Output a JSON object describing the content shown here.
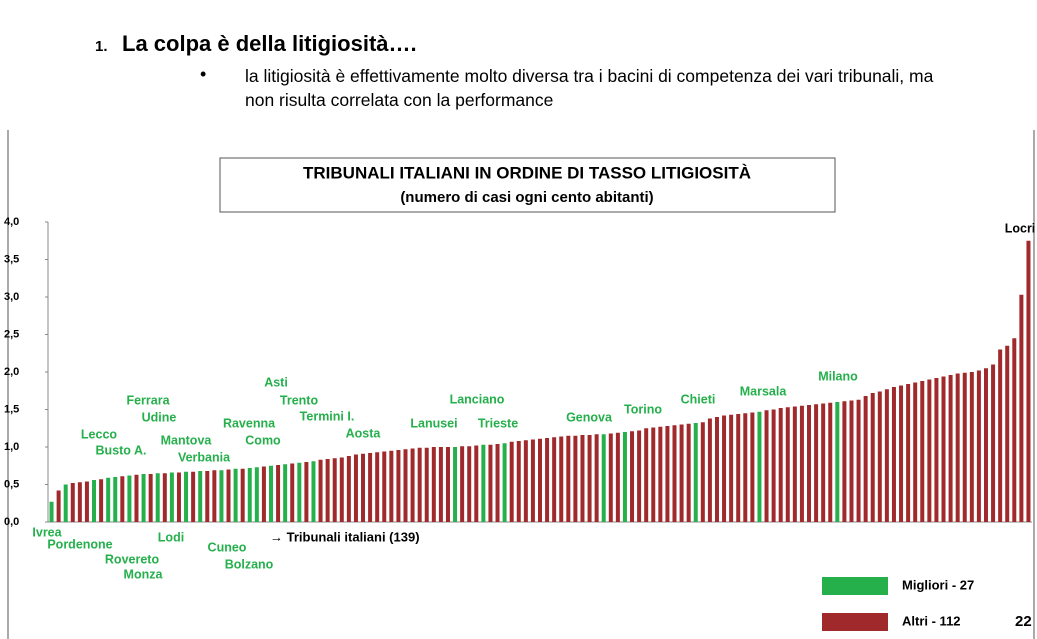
{
  "header": {
    "number": "1.",
    "title": "La colpa è della litigiosità….",
    "bullet": "la litigiosità è effettivamente molto diversa tra i bacini di competenza dei vari tribunali, ma non risulta correlata con la performance"
  },
  "page_number": "22",
  "chart_data": {
    "type": "bar",
    "title": "TRIBUNALI ITALIANI IN ORDINE DI TASSO LITIGIOSITÀ",
    "subtitle": "(numero di casi ogni cento abitanti)",
    "x_label": "→ Tribunali italiani (139)",
    "ylim": [
      0,
      4
    ],
    "yticks": [
      {
        "value": 0,
        "label": "0,0"
      },
      {
        "value": 0.5,
        "label": "0,5"
      },
      {
        "value": 1,
        "label": "1,0"
      },
      {
        "value": 1.5,
        "label": "1,5"
      },
      {
        "value": 2,
        "label": "2,0"
      },
      {
        "value": 2.5,
        "label": "2,5"
      },
      {
        "value": 3,
        "label": "3,0"
      },
      {
        "value": 3.5,
        "label": "3,5"
      },
      {
        "value": 4,
        "label": "4,0"
      }
    ],
    "legend": "bottom-right",
    "categories": [
      "Ivrea",
      null,
      "Pordenone",
      null,
      null,
      null,
      "Lecco",
      null,
      "Busto A.",
      "Rovereto",
      null,
      "Monza",
      null,
      "Ferrara",
      null,
      "Udine",
      null,
      "Lodi",
      null,
      "Mantova",
      null,
      "Verbania",
      null,
      null,
      "Cuneo",
      null,
      "Bolzano",
      null,
      "Ravenna",
      "Como",
      null,
      "Asti",
      null,
      "Trento",
      null,
      "Termini I.",
      null,
      "Aosta",
      null,
      null,
      null,
      null,
      null,
      null,
      null,
      null,
      null,
      null,
      null,
      null,
      null,
      null,
      null,
      null,
      null,
      null,
      null,
      "Lanusei",
      null,
      null,
      null,
      "Lanciano",
      null,
      null,
      "Trieste",
      null,
      null,
      null,
      null,
      null,
      null,
      null,
      null,
      null,
      null,
      null,
      null,
      null,
      "Genova",
      null,
      null,
      "Torino",
      null,
      null,
      null,
      null,
      null,
      null,
      null,
      null,
      null,
      "Chieti",
      null,
      null,
      null,
      null,
      null,
      null,
      null,
      null,
      "Marsala",
      null,
      null,
      null,
      null,
      null,
      null,
      null,
      null,
      null,
      null,
      "Milano",
      null,
      null,
      null,
      null,
      null,
      null,
      null,
      null,
      null,
      null,
      null,
      null,
      null,
      null,
      null,
      null,
      null,
      null,
      null,
      null,
      null,
      null,
      null,
      null,
      null,
      null,
      "Locri"
    ],
    "series": [
      {
        "name": "Migliori - 27",
        "color": "#25b04c",
        "values": [
          0.27,
          null,
          0.5,
          null,
          null,
          null,
          0.56,
          null,
          0.59,
          0.6,
          null,
          0.62,
          null,
          0.64,
          null,
          0.65,
          null,
          0.66,
          null,
          0.67,
          null,
          0.68,
          null,
          null,
          0.69,
          null,
          0.71,
          null,
          0.72,
          0.73,
          null,
          0.75,
          null,
          0.77,
          null,
          0.79,
          null,
          0.81,
          null,
          null,
          null,
          null,
          null,
          null,
          null,
          null,
          null,
          null,
          null,
          null,
          null,
          null,
          null,
          null,
          null,
          null,
          null,
          1.0,
          null,
          null,
          null,
          1.03,
          null,
          null,
          1.05,
          null,
          null,
          null,
          null,
          null,
          null,
          null,
          null,
          null,
          null,
          null,
          null,
          null,
          1.17,
          null,
          null,
          1.2,
          null,
          null,
          null,
          null,
          null,
          null,
          null,
          null,
          null,
          1.32,
          null,
          null,
          null,
          null,
          null,
          null,
          null,
          null,
          1.47,
          null,
          null,
          null,
          null,
          null,
          null,
          null,
          null,
          null,
          null,
          1.6,
          null,
          null,
          null,
          null,
          null,
          null,
          null,
          null,
          null,
          null,
          null,
          null,
          null,
          null,
          null,
          null,
          null,
          null,
          null,
          null,
          null,
          null,
          null,
          null,
          null,
          null,
          null
        ]
      },
      {
        "name": "Altri - 112",
        "color": "#a0292b",
        "values": [
          null,
          0.42,
          null,
          0.52,
          0.53,
          0.54,
          null,
          0.57,
          null,
          null,
          0.61,
          null,
          0.63,
          null,
          0.64,
          null,
          0.65,
          null,
          0.66,
          null,
          0.67,
          null,
          0.68,
          0.69,
          null,
          0.7,
          null,
          0.71,
          null,
          null,
          0.74,
          null,
          0.76,
          null,
          0.78,
          null,
          0.8,
          null,
          0.83,
          0.84,
          0.85,
          0.86,
          0.88,
          0.9,
          0.91,
          0.92,
          0.93,
          0.94,
          0.95,
          0.96,
          0.97,
          0.98,
          0.99,
          0.99,
          1.0,
          1.0,
          1.0,
          null,
          1.01,
          1.01,
          1.02,
          null,
          1.03,
          1.04,
          null,
          1.07,
          1.08,
          1.09,
          1.1,
          1.11,
          1.12,
          1.13,
          1.14,
          1.15,
          1.15,
          1.16,
          1.16,
          1.17,
          null,
          1.18,
          1.19,
          null,
          1.21,
          1.22,
          1.25,
          1.26,
          1.27,
          1.28,
          1.29,
          1.3,
          1.31,
          null,
          1.33,
          1.38,
          1.4,
          1.42,
          1.43,
          1.44,
          1.45,
          1.46,
          null,
          1.49,
          1.5,
          1.52,
          1.53,
          1.54,
          1.55,
          1.56,
          1.57,
          1.58,
          1.59,
          null,
          1.61,
          1.62,
          1.63,
          1.68,
          1.72,
          1.74,
          1.77,
          1.8,
          1.82,
          1.84,
          1.86,
          1.88,
          1.9,
          1.92,
          1.94,
          1.96,
          1.98,
          1.99,
          2.0,
          2.02,
          2.05,
          2.1,
          2.3,
          2.35,
          2.45,
          3.03,
          3.75
        ]
      }
    ]
  }
}
